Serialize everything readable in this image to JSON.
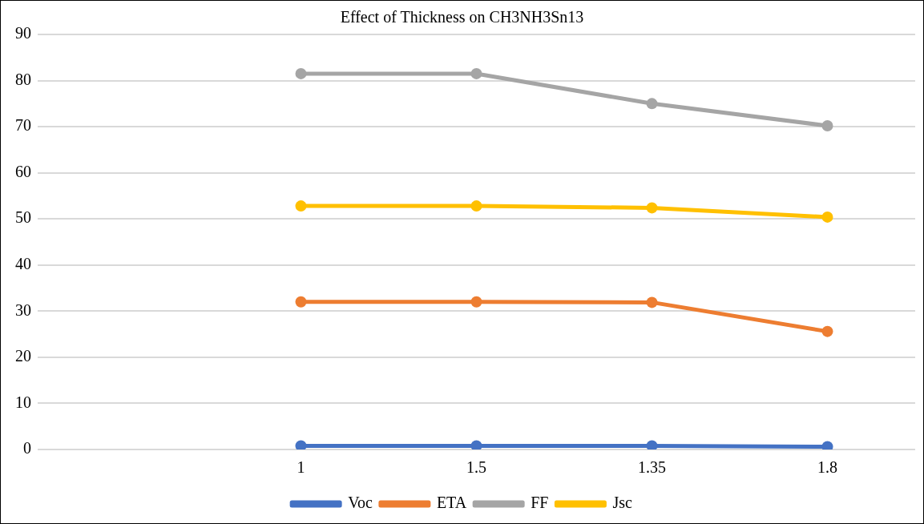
{
  "chart_data": {
    "type": "line",
    "title": "Effect of Thickness on CH3NH3Sn13",
    "categories": [
      null,
      "1",
      "1.5",
      "1.35",
      "1.8"
    ],
    "series": [
      {
        "name": "Voc",
        "color": "#4472c4",
        "values": [
          null,
          0.8,
          0.8,
          0.8,
          0.6
        ]
      },
      {
        "name": "ETA",
        "color": "#ed7d31",
        "values": [
          null,
          32,
          32,
          31.9,
          25.6
        ]
      },
      {
        "name": "FF",
        "color": "#a5a5a5",
        "values": [
          null,
          81.5,
          81.5,
          75,
          70.2
        ]
      },
      {
        "name": "Jsc",
        "color": "#ffc000",
        "values": [
          null,
          52.8,
          52.8,
          52.4,
          50.4
        ]
      }
    ],
    "ylim": [
      0,
      90
    ],
    "yticks": [
      0,
      10,
      20,
      30,
      40,
      50,
      60,
      70,
      80,
      90
    ],
    "grid": "y",
    "legend": "bottom",
    "marker": "circle",
    "line_style": "solid"
  }
}
